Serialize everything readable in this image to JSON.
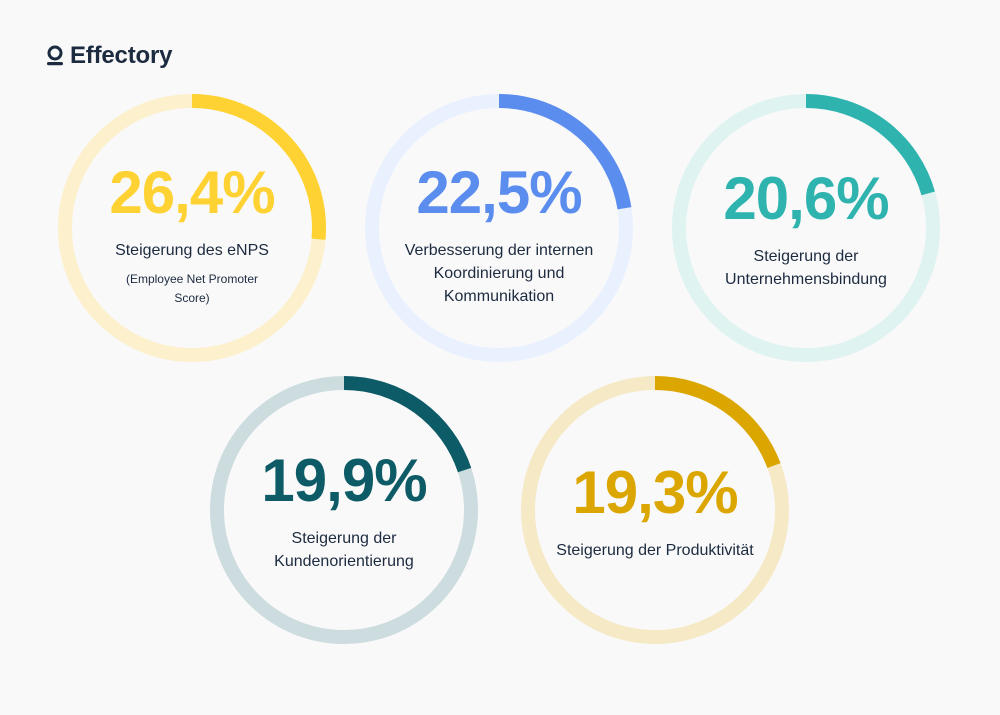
{
  "brand": {
    "name": "Effectory",
    "icon": "person-icon"
  },
  "gauges": [
    {
      "value": "26,4%",
      "fraction": 0.264,
      "label": "Steigerung des eNPS",
      "note": "(Employee Net Promoter Score)",
      "color": "#ffd234",
      "track_color": "#fdf0cc"
    },
    {
      "value": "22,5%",
      "fraction": 0.225,
      "label": "Verbesserung der internen Koordinierung und Kommunikation",
      "note": "",
      "color": "#5b8def",
      "track_color": "#eaf1fe"
    },
    {
      "value": "20,6%",
      "fraction": 0.206,
      "label": "Steigerung der Unternehmensbindung",
      "note": "",
      "color": "#2fb3ae",
      "track_color": "#dff3f1"
    },
    {
      "value": "19,9%",
      "fraction": 0.199,
      "label": "Steigerung der Kundenorientierung",
      "note": "",
      "color": "#0d5b66",
      "track_color": "#cddcdf"
    },
    {
      "value": "19,3%",
      "fraction": 0.193,
      "label": "Steigerung der Produktivität",
      "note": "",
      "color": "#dba600",
      "track_color": "#f5e9c6"
    }
  ]
}
